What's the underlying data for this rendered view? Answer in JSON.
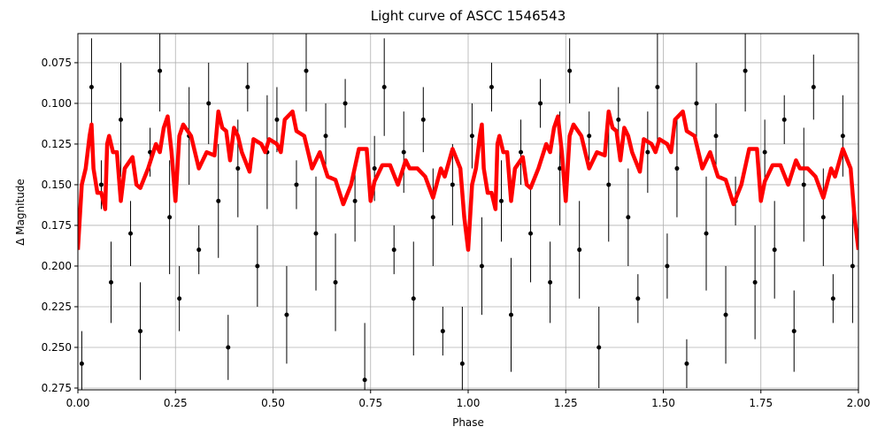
{
  "chart_data": {
    "type": "scatter",
    "title": "Light curve of ASCC 1546543",
    "xlabel": "Phase",
    "ylabel": "Δ Magnitude",
    "xlim": [
      0,
      2
    ],
    "ylim": [
      0.0571,
      0.2761
    ],
    "y_inverted": true,
    "grid": true,
    "xticks": [
      {
        "value": 0,
        "label": "0.00"
      },
      0.25,
      {
        "value": 0.5,
        "label": "0.50"
      },
      0.75,
      {
        "value": 1,
        "label": "1.00"
      },
      1.25,
      {
        "value": 1.5,
        "label": "1.50"
      },
      1.75,
      {
        "value": 2,
        "label": "2.00"
      }
    ],
    "yticks": [
      0.075,
      {
        "value": 0.1,
        "label": "0.100"
      },
      0.125,
      {
        "value": 0.15,
        "label": "0.150"
      },
      0.175,
      {
        "value": 0.2,
        "label": "0.200"
      },
      0.225,
      {
        "value": 0.25,
        "label": "0.250"
      },
      0.275
    ],
    "points": {
      "color": "#000000",
      "x": [
        0.01,
        0.035,
        0.06,
        0.085,
        0.11,
        0.135,
        0.16,
        0.185,
        0.21,
        0.235,
        0.26,
        0.285,
        0.31,
        0.335,
        0.36,
        0.385,
        0.41,
        0.435,
        0.46,
        0.485,
        0.51,
        0.535,
        0.56,
        0.585,
        0.61,
        0.635,
        0.66,
        0.685,
        0.71,
        0.735,
        0.76,
        0.785,
        0.81,
        0.835,
        0.86,
        0.885,
        0.91,
        0.935,
        0.96,
        0.985,
        1.01,
        1.035,
        1.06,
        1.085,
        1.11,
        1.135,
        1.16,
        1.185,
        1.21,
        1.235,
        1.26,
        1.285,
        1.31,
        1.335,
        1.36,
        1.385,
        1.41,
        1.435,
        1.46,
        1.485,
        1.51,
        1.535,
        1.56,
        1.585,
        1.61,
        1.635,
        1.66,
        1.685,
        1.71,
        1.735,
        1.76,
        1.785,
        1.81,
        1.835,
        1.86,
        1.885,
        1.91,
        1.935,
        1.96,
        1.985
      ],
      "y": [
        0.26,
        0.09,
        0.15,
        0.21,
        0.11,
        0.18,
        0.24,
        0.13,
        0.08,
        0.17,
        0.22,
        0.12,
        0.19,
        0.1,
        0.16,
        0.25,
        0.14,
        0.09,
        0.2,
        0.13,
        0.11,
        0.23,
        0.15,
        0.08,
        0.18,
        0.12,
        0.21,
        0.1,
        0.16,
        0.27,
        0.14,
        0.09,
        0.19,
        0.13,
        0.22,
        0.11,
        0.17,
        0.24,
        0.15,
        0.26,
        0.12,
        0.2,
        0.09,
        0.16,
        0.23,
        0.13,
        0.18,
        0.1,
        0.21,
        0.14,
        0.08,
        0.19,
        0.12,
        0.25,
        0.15,
        0.11,
        0.17,
        0.22,
        0.13,
        0.09,
        0.2,
        0.14,
        0.26,
        0.1,
        0.18,
        0.12,
        0.23,
        0.16,
        0.08,
        0.21,
        0.13,
        0.19,
        0.11,
        0.24,
        0.15,
        0.09,
        0.17,
        0.22,
        0.12,
        0.2
      ],
      "yerr": [
        0.02,
        0.03,
        0.015,
        0.025,
        0.035,
        0.02,
        0.03,
        0.015,
        0.025,
        0.035,
        0.02,
        0.03,
        0.015,
        0.025,
        0.035,
        0.02,
        0.03,
        0.015,
        0.025,
        0.035,
        0.02,
        0.03,
        0.015,
        0.025,
        0.035,
        0.02,
        0.03,
        0.015,
        0.025,
        0.035,
        0.02,
        0.03,
        0.015,
        0.025,
        0.035,
        0.02,
        0.03,
        0.015,
        0.025,
        0.035,
        0.02,
        0.03,
        0.015,
        0.025,
        0.035,
        0.02,
        0.03,
        0.015,
        0.025,
        0.035,
        0.02,
        0.03,
        0.015,
        0.025,
        0.035,
        0.02,
        0.03,
        0.015,
        0.025,
        0.035,
        0.02,
        0.03,
        0.015,
        0.025,
        0.035,
        0.02,
        0.03,
        0.015,
        0.025,
        0.035,
        0.02,
        0.03,
        0.015,
        0.025,
        0.035,
        0.02,
        0.03,
        0.015,
        0.025,
        0.035
      ]
    },
    "binned": {
      "color": "#ff0000",
      "x": [
        0,
        0.01,
        0.02,
        0.03,
        0.035,
        0.04,
        0.05,
        0.06,
        0.07,
        0.075,
        0.08,
        0.09,
        0.1,
        0.11,
        0.12,
        0.14,
        0.15,
        0.16,
        0.18,
        0.2,
        0.21,
        0.22,
        0.23,
        0.24,
        0.25,
        0.26,
        0.27,
        0.29,
        0.31,
        0.33,
        0.35,
        0.36,
        0.37,
        0.38,
        0.39,
        0.4,
        0.41,
        0.42,
        0.44,
        0.45,
        0.47,
        0.48,
        0.49,
        0.51,
        0.52,
        0.53,
        0.55,
        0.56,
        0.58,
        0.6,
        0.62,
        0.64,
        0.66,
        0.68,
        0.7,
        0.72,
        0.74,
        0.75,
        0.76,
        0.78,
        0.8,
        0.82,
        0.84,
        0.85,
        0.87,
        0.89,
        0.91,
        0.93,
        0.94,
        0.96,
        0.98,
        0.99,
        1.0,
        1.01,
        1.02,
        1.03,
        1.035,
        1.04,
        1.05,
        1.06,
        1.07,
        1.075,
        1.08,
        1.09,
        1.1,
        1.11,
        1.12,
        1.14,
        1.15,
        1.16,
        1.18,
        1.2,
        1.21,
        1.22,
        1.23,
        1.24,
        1.25,
        1.26,
        1.27,
        1.29,
        1.31,
        1.33,
        1.35,
        1.36,
        1.37,
        1.38,
        1.39,
        1.4,
        1.41,
        1.42,
        1.44,
        1.45,
        1.47,
        1.48,
        1.49,
        1.51,
        1.52,
        1.53,
        1.55,
        1.56,
        1.58,
        1.6,
        1.62,
        1.64,
        1.66,
        1.68,
        1.7,
        1.72,
        1.74,
        1.75,
        1.76,
        1.78,
        1.8,
        1.82,
        1.84,
        1.85,
        1.87,
        1.89,
        1.91,
        1.93,
        1.94,
        1.96,
        1.98,
        1.99,
        2.0
      ],
      "y": [
        0.19,
        0.15,
        0.14,
        0.12,
        0.113,
        0.14,
        0.155,
        0.155,
        0.165,
        0.125,
        0.12,
        0.13,
        0.13,
        0.16,
        0.14,
        0.133,
        0.15,
        0.152,
        0.14,
        0.125,
        0.13,
        0.115,
        0.108,
        0.13,
        0.16,
        0.12,
        0.113,
        0.12,
        0.14,
        0.13,
        0.132,
        0.105,
        0.115,
        0.117,
        0.135,
        0.115,
        0.12,
        0.13,
        0.142,
        0.122,
        0.125,
        0.13,
        0.122,
        0.125,
        0.13,
        0.11,
        0.105,
        0.117,
        0.12,
        0.14,
        0.13,
        0.145,
        0.147,
        0.162,
        0.15,
        0.128,
        0.128,
        0.16,
        0.148,
        0.138,
        0.138,
        0.15,
        0.135,
        0.14,
        0.14,
        0.145,
        0.158,
        0.14,
        0.145,
        0.128,
        0.14,
        0.17,
        0.19,
        0.15,
        0.14,
        0.12,
        0.113,
        0.14,
        0.155,
        0.155,
        0.165,
        0.125,
        0.12,
        0.13,
        0.13,
        0.16,
        0.14,
        0.133,
        0.15,
        0.152,
        0.14,
        0.125,
        0.13,
        0.115,
        0.108,
        0.13,
        0.16,
        0.12,
        0.113,
        0.12,
        0.14,
        0.13,
        0.132,
        0.105,
        0.115,
        0.117,
        0.135,
        0.115,
        0.12,
        0.13,
        0.142,
        0.122,
        0.125,
        0.13,
        0.122,
        0.125,
        0.13,
        0.11,
        0.105,
        0.117,
        0.12,
        0.14,
        0.13,
        0.145,
        0.147,
        0.162,
        0.15,
        0.128,
        0.128,
        0.16,
        0.148,
        0.138,
        0.138,
        0.15,
        0.135,
        0.14,
        0.14,
        0.145,
        0.158,
        0.14,
        0.145,
        0.128,
        0.14,
        0.17,
        0.19
      ]
    }
  }
}
